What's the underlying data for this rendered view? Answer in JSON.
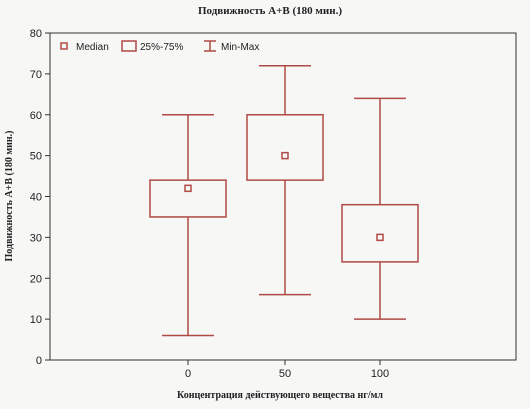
{
  "chart_data": {
    "type": "boxplot",
    "title": "Подвижность А+В (180 мин.)",
    "xlabel": "Концентрация действующего вещества нг/мл",
    "ylabel": "Подвижность А+В (180 мин.)",
    "ylim": [
      0,
      80
    ],
    "yticks": [
      0,
      10,
      20,
      30,
      40,
      50,
      60,
      70,
      80
    ],
    "categories": [
      "0",
      "50",
      "100"
    ],
    "boxes": [
      {
        "category": "0",
        "min": 6,
        "q1": 35,
        "median": 42,
        "q3": 44,
        "max": 60
      },
      {
        "category": "50",
        "min": 16,
        "q1": 44,
        "median": 50,
        "q3": 60,
        "max": 72
      },
      {
        "category": "100",
        "min": 10,
        "q1": 24,
        "median": 30,
        "q3": 38,
        "max": 64
      }
    ],
    "legend": {
      "placement": "top-left",
      "items": [
        "Median",
        "25%-75%",
        "Min-Max"
      ]
    },
    "grid": false,
    "color": "#b04a45"
  }
}
